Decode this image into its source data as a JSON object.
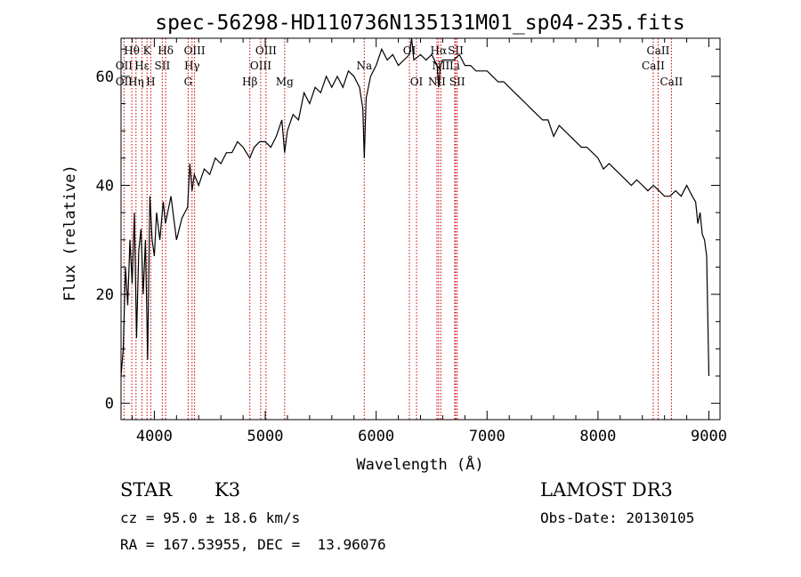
{
  "chart_data": {
    "type": "line",
    "title": "spec-56298-HD110736N135131M01_sp04-235.fits",
    "xlabel": "Wavelength (Å)",
    "ylabel": "Flux (relative)",
    "xlim": [
      3700,
      9100
    ],
    "ylim": [
      -3,
      67
    ],
    "xticks": [
      4000,
      5000,
      6000,
      7000,
      8000,
      9000
    ],
    "yticks": [
      0,
      20,
      40,
      60
    ],
    "grid": false,
    "series": [
      {
        "name": "spectrum",
        "x": [
          3700,
          3720,
          3740,
          3760,
          3780,
          3800,
          3820,
          3840,
          3860,
          3880,
          3900,
          3920,
          3940,
          3960,
          3970,
          3980,
          4000,
          4020,
          4050,
          4080,
          4100,
          4150,
          4200,
          4250,
          4300,
          4320,
          4340,
          4360,
          4400,
          4450,
          4500,
          4550,
          4600,
          4650,
          4700,
          4750,
          4800,
          4861,
          4900,
          4950,
          5000,
          5050,
          5100,
          5150,
          5175,
          5200,
          5250,
          5300,
          5350,
          5400,
          5450,
          5500,
          5550,
          5600,
          5650,
          5700,
          5750,
          5800,
          5850,
          5880,
          5893,
          5910,
          5950,
          6000,
          6050,
          6100,
          6150,
          6200,
          6250,
          6300,
          6320,
          6340,
          6400,
          6450,
          6500,
          6550,
          6563,
          6580,
          6600,
          6650,
          6700,
          6750,
          6800,
          6850,
          6900,
          6950,
          7000,
          7050,
          7100,
          7150,
          7200,
          7250,
          7300,
          7350,
          7400,
          7450,
          7500,
          7550,
          7600,
          7650,
          7700,
          7750,
          7800,
          7850,
          7900,
          7950,
          8000,
          8050,
          8100,
          8150,
          8200,
          8250,
          8300,
          8350,
          8400,
          8450,
          8500,
          8550,
          8600,
          8650,
          8700,
          8750,
          8800,
          8850,
          8880,
          8900,
          8920,
          8940,
          8960,
          8980,
          9000
        ],
        "values": [
          5,
          10,
          25,
          18,
          30,
          22,
          35,
          12,
          28,
          32,
          20,
          30,
          8,
          38,
          34,
          30,
          27,
          35,
          30,
          37,
          33,
          38,
          30,
          34,
          36,
          44,
          39,
          42,
          40,
          43,
          42,
          45,
          44,
          46,
          46,
          48,
          47,
          45,
          47,
          48,
          48,
          47,
          49,
          52,
          46,
          50,
          53,
          52,
          57,
          55,
          58,
          57,
          60,
          58,
          60,
          58,
          61,
          60,
          58,
          54,
          45,
          56,
          60,
          62,
          65,
          63,
          64,
          62,
          63,
          64,
          67,
          63,
          64,
          63,
          64,
          62,
          58,
          62,
          63,
          63,
          63,
          64,
          62,
          62,
          61,
          61,
          61,
          60,
          59,
          59,
          58,
          57,
          56,
          55,
          54,
          53,
          52,
          52,
          49,
          51,
          50,
          49,
          48,
          47,
          47,
          46,
          45,
          43,
          44,
          43,
          42,
          41,
          40,
          41,
          40,
          39,
          40,
          39,
          38,
          38,
          39,
          38,
          40,
          38,
          37,
          33,
          35,
          31,
          30,
          27,
          5
        ]
      }
    ],
    "lines": [
      {
        "name": "OII",
        "wave": 3727
      },
      {
        "name": "Hθ",
        "wave": 3797
      },
      {
        "name": "Hη",
        "wave": 3835
      },
      {
        "name": "Hε",
        "wave": 3889
      },
      {
        "name": "K",
        "wave": 3934
      },
      {
        "name": "H",
        "wave": 3968
      },
      {
        "name": "SII",
        "wave": 4072
      },
      {
        "name": "Hδ",
        "wave": 4102
      },
      {
        "name": "G",
        "wave": 4305
      },
      {
        "name": "Hγ",
        "wave": 4340
      },
      {
        "name": "OIII",
        "wave": 4363
      },
      {
        "name": "Hβ",
        "wave": 4861
      },
      {
        "name": "OIII",
        "wave": 4959
      },
      {
        "name": "OIII",
        "wave": 5007
      },
      {
        "name": "Mg",
        "wave": 5175
      },
      {
        "name": "Na",
        "wave": 5893
      },
      {
        "name": "OI",
        "wave": 6300
      },
      {
        "name": "OI",
        "wave": 6364
      },
      {
        "name": "NII",
        "wave": 6548
      },
      {
        "name": "Hα",
        "wave": 6563
      },
      {
        "name": "NII",
        "wave": 6583
      },
      {
        "name": "Li",
        "wave": 6708
      },
      {
        "name": "SII",
        "wave": 6717
      },
      {
        "name": "SII",
        "wave": 6731
      },
      {
        "name": "CaII",
        "wave": 8498
      },
      {
        "name": "CaII",
        "wave": 8542
      },
      {
        "name": "CaII",
        "wave": 8662
      }
    ],
    "line_labels": [
      {
        "text": "Hθ",
        "wave": 3797,
        "row": 1
      },
      {
        "text": "K",
        "wave": 3934,
        "row": 1
      },
      {
        "text": "Hδ",
        "wave": 4102,
        "row": 1
      },
      {
        "text": "OIII",
        "wave": 4363,
        "row": 1
      },
      {
        "text": "OIII",
        "wave": 5007,
        "row": 1
      },
      {
        "text": "OI",
        "wave": 6300,
        "row": 1
      },
      {
        "text": "Hα",
        "wave": 6563,
        "row": 1
      },
      {
        "text": "SII",
        "wave": 6717,
        "row": 1
      },
      {
        "text": "CaII",
        "wave": 8542,
        "row": 1
      },
      {
        "text": "OII",
        "wave": 3727,
        "row": 2
      },
      {
        "text": "Hε",
        "wave": 3889,
        "row": 2
      },
      {
        "text": "SII",
        "wave": 4072,
        "row": 2
      },
      {
        "text": "Hγ",
        "wave": 4340,
        "row": 2
      },
      {
        "text": "OIII",
        "wave": 4959,
        "row": 2
      },
      {
        "text": "Na",
        "wave": 5893,
        "row": 2
      },
      {
        "text": "NII",
        "wave": 6583,
        "row": 2
      },
      {
        "text": "Li",
        "wave": 6708,
        "row": 2
      },
      {
        "text": "CaII",
        "wave": 8498,
        "row": 2
      },
      {
        "text": "OII",
        "wave": 3727,
        "row": 3
      },
      {
        "text": "Hη",
        "wave": 3835,
        "row": 3
      },
      {
        "text": "H",
        "wave": 3968,
        "row": 3
      },
      {
        "text": "G",
        "wave": 4305,
        "row": 3
      },
      {
        "text": "Hβ",
        "wave": 4861,
        "row": 3
      },
      {
        "text": "Mg",
        "wave": 5175,
        "row": 3
      },
      {
        "text": "OI",
        "wave": 6364,
        "row": 3
      },
      {
        "text": "NII",
        "wave": 6548,
        "row": 3
      },
      {
        "text": "SII",
        "wave": 6731,
        "row": 3
      },
      {
        "text": "CaII",
        "wave": 8662,
        "row": 3
      }
    ],
    "colors": {
      "spectrum": "#000000",
      "lines": "#cc0000",
      "axes": "#000000"
    }
  },
  "info": {
    "object_class": "STAR",
    "subclass": "K3",
    "survey": "LAMOST DR3",
    "cz": "cz = 95.0 ± 18.6 km/s",
    "obs_date": "Obs-Date: 20130105",
    "coords": "RA = 167.53955, DEC =  13.96076"
  }
}
